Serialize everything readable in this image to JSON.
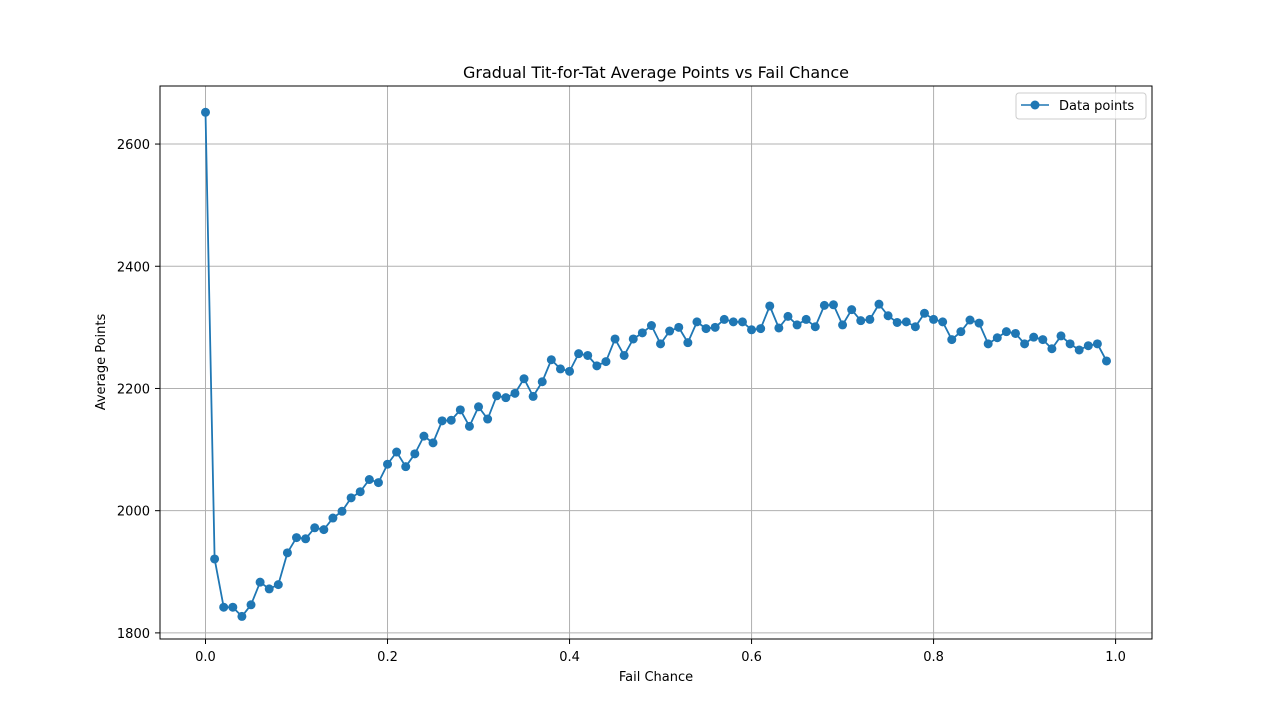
{
  "chart_data": {
    "type": "line",
    "title": "Gradual Tit-for-Tat Average Points vs Fail Chance",
    "xlabel": "Fail Chance",
    "ylabel": "Average Points",
    "xlim": [
      -0.05,
      1.04
    ],
    "ylim": [
      1790,
      2695
    ],
    "xticks": [
      0.0,
      0.2,
      0.4,
      0.6,
      0.8,
      1.0
    ],
    "xtick_labels": [
      "0.0",
      "0.2",
      "0.4",
      "0.6",
      "0.8",
      "1.0"
    ],
    "yticks": [
      1800,
      2000,
      2200,
      2400,
      2600
    ],
    "ytick_labels": [
      "1800",
      "2000",
      "2200",
      "2400",
      "2600"
    ],
    "grid": true,
    "legend_position": "upper right",
    "series": [
      {
        "name": "Data points",
        "color": "#1f77b4",
        "marker": "circle",
        "x": [
          0.0,
          0.01,
          0.02,
          0.03,
          0.04,
          0.05,
          0.06,
          0.07,
          0.08,
          0.09,
          0.1,
          0.11,
          0.12,
          0.13,
          0.14,
          0.15,
          0.16,
          0.17,
          0.18,
          0.19,
          0.2,
          0.21,
          0.22,
          0.23,
          0.24,
          0.25,
          0.26,
          0.27,
          0.28,
          0.29,
          0.3,
          0.31,
          0.32,
          0.33,
          0.34,
          0.35,
          0.36,
          0.37,
          0.38,
          0.39,
          0.4,
          0.41,
          0.42,
          0.43,
          0.44,
          0.45,
          0.46,
          0.47,
          0.48,
          0.49,
          0.5,
          0.51,
          0.52,
          0.53,
          0.54,
          0.55,
          0.56,
          0.57,
          0.58,
          0.59,
          0.6,
          0.61,
          0.62,
          0.63,
          0.64,
          0.65,
          0.66,
          0.67,
          0.68,
          0.69,
          0.7,
          0.71,
          0.72,
          0.73,
          0.74,
          0.75,
          0.76,
          0.77,
          0.78,
          0.79,
          0.8,
          0.81,
          0.82,
          0.83,
          0.84,
          0.85,
          0.86,
          0.87,
          0.88,
          0.89,
          0.9,
          0.91,
          0.92,
          0.93,
          0.94,
          0.95,
          0.96,
          0.97,
          0.98,
          0.99
        ],
        "y": [
          2652,
          1921,
          1842,
          1842,
          1827,
          1846,
          1883,
          1872,
          1879,
          1931,
          1956,
          1954,
          1972,
          1969,
          1988,
          1999,
          2021,
          2031,
          2051,
          2046,
          2076,
          2096,
          2072,
          2093,
          2122,
          2111,
          2147,
          2148,
          2165,
          2138,
          2170,
          2150,
          2188,
          2185,
          2192,
          2216,
          2187,
          2211,
          2247,
          2232,
          2228,
          2257,
          2254,
          2237,
          2244,
          2281,
          2254,
          2281,
          2291,
          2303,
          2273,
          2294,
          2300,
          2275,
          2309,
          2298,
          2300,
          2313,
          2309,
          2309,
          2296,
          2298,
          2335,
          2299,
          2318,
          2304,
          2313,
          2301,
          2336,
          2337,
          2304,
          2329,
          2311,
          2313,
          2338,
          2319,
          2308,
          2309,
          2301,
          2323,
          2313,
          2309,
          2280,
          2293,
          2312,
          2307,
          2273,
          2283,
          2293,
          2290,
          2273,
          2284,
          2280,
          2265,
          2286,
          2273,
          2263,
          2270,
          2273,
          2245
        ]
      }
    ]
  }
}
